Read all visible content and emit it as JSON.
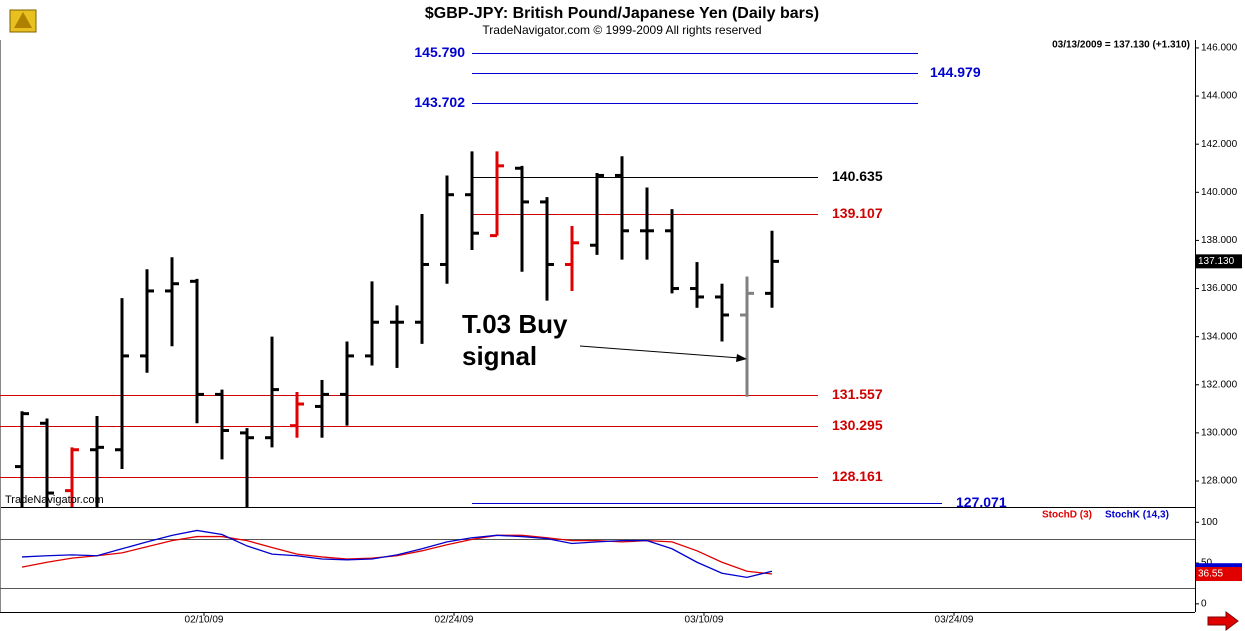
{
  "chart_data": [
    {
      "type": "ohlc",
      "title": "$GBP-JPY:  British Pound/Japanese Yen  (Daily bars)",
      "subtitle": "TradeNavigator.com © 1999-2009 All rights reserved",
      "header": "03/13/2009 = 137.130 (+1.310)",
      "watermark": "TradeNavigator.com",
      "annotation": [
        "T.03 Buy",
        "signal"
      ],
      "open": [
        128.6,
        130.4,
        127.6,
        129.3,
        129.3,
        133.2,
        135.9,
        136.3,
        131.6,
        130.0,
        129.8,
        130.3,
        131.1,
        131.6,
        133.2,
        134.6,
        134.6,
        137.0,
        139.9,
        138.2,
        141.0,
        139.6,
        137.0,
        137.8,
        140.7,
        138.4,
        138.4,
        136.0,
        135.65,
        134.9,
        135.8
      ],
      "high": [
        130.9,
        130.6,
        129.4,
        130.7,
        135.6,
        136.8,
        137.3,
        136.4,
        131.8,
        130.2,
        134.0,
        131.7,
        132.2,
        133.8,
        136.3,
        135.3,
        139.1,
        140.7,
        141.7,
        141.7,
        141.1,
        139.8,
        138.6,
        140.8,
        141.5,
        140.2,
        139.3,
        137.1,
        136.2,
        136.5,
        138.4
      ],
      "low": [
        126.5,
        126.5,
        126.5,
        126.5,
        128.5,
        132.5,
        133.6,
        130.4,
        128.9,
        126.5,
        129.4,
        129.8,
        129.8,
        130.3,
        132.8,
        132.7,
        133.7,
        136.2,
        137.6,
        138.2,
        136.7,
        135.5,
        135.9,
        137.4,
        137.2,
        137.2,
        135.8,
        135.2,
        133.8,
        131.5,
        135.2
      ],
      "close": [
        130.8,
        127.5,
        129.3,
        129.4,
        133.2,
        135.9,
        136.2,
        131.6,
        130.1,
        129.8,
        131.8,
        131.2,
        131.6,
        133.2,
        134.6,
        134.6,
        137.0,
        139.9,
        138.3,
        141.1,
        139.6,
        137.0,
        137.9,
        140.7,
        138.4,
        138.4,
        136.0,
        135.65,
        134.9,
        135.8,
        137.13
      ],
      "colors": [
        "#000",
        "#000",
        "#e00000",
        "#000",
        "#000",
        "#000",
        "#000",
        "#000",
        "#000",
        "#000",
        "#000",
        "#e00000",
        "#000",
        "#000",
        "#000",
        "#000",
        "#000",
        "#000",
        "#000",
        "#e00000",
        "#000",
        "#000",
        "#e00000",
        "#000",
        "#000",
        "#000",
        "#000",
        "#000",
        "#000",
        "#808080",
        "#000"
      ],
      "last_label": {
        "value": 137.13,
        "label": "137.130"
      },
      "levels": [
        {
          "value": 145.79,
          "label": "145.790",
          "color": "#0000d0"
        },
        {
          "value": 144.979,
          "label": "144.979",
          "color": "#0000d0"
        },
        {
          "value": 143.702,
          "label": "143.702",
          "color": "#0000d0"
        },
        {
          "value": 140.635,
          "label": "140.635",
          "color": "#000000"
        },
        {
          "value": 139.107,
          "label": "139.107",
          "color": "#d00000"
        },
        {
          "value": 131.557,
          "label": "131.557",
          "color": "#d00000"
        },
        {
          "value": 130.295,
          "label": "130.295",
          "color": "#d00000"
        },
        {
          "value": 128.161,
          "label": "128.161",
          "color": "#d00000"
        },
        {
          "value": 127.071,
          "label": "127.071",
          "color": "#0000d0"
        }
      ],
      "ylim": [
        126.92,
        146.33
      ],
      "yticks": [
        {
          "value": 146,
          "label": "146.000"
        },
        {
          "value": 144,
          "label": "144.000"
        },
        {
          "value": 142,
          "label": "142.000"
        },
        {
          "value": 140,
          "label": "140.000"
        },
        {
          "value": 138,
          "label": "138.000"
        },
        {
          "value": 136,
          "label": "136.000"
        },
        {
          "value": 134,
          "label": "134.000"
        },
        {
          "value": 132,
          "label": "132.000"
        },
        {
          "value": 130,
          "label": "130.000"
        },
        {
          "value": 128,
          "label": "128.000"
        }
      ],
      "xlim": [
        -0.88,
        46.92
      ],
      "xticks": [
        {
          "value": 7,
          "label": "02/10/09"
        },
        {
          "value": 17,
          "label": "02/24/09"
        },
        {
          "value": 27,
          "label": "03/10/09"
        },
        {
          "value": 37,
          "label": "03/24/09"
        }
      ]
    },
    {
      "type": "line",
      "series": [
        {
          "name": "StochD (3)",
          "color": "#e00000",
          "values": [
            45,
            51,
            56,
            59,
            62.5,
            70,
            77.5,
            82.5,
            82.5,
            77.5,
            69,
            61,
            57.5,
            55,
            56,
            59,
            65,
            72.5,
            79,
            84,
            84,
            81,
            77.5,
            77.5,
            76,
            77.5,
            76,
            65,
            51,
            40,
            36.55
          ]
        },
        {
          "name": "StochK (14,3)",
          "color": "#0000d0",
          "values": [
            57.5,
            59,
            60,
            59,
            67.5,
            76,
            84,
            90,
            85,
            71,
            61,
            59,
            55,
            54,
            55,
            60,
            67.5,
            76,
            81,
            84,
            82.5,
            80,
            74,
            76,
            77.5,
            77.5,
            67.5,
            51,
            37.5,
            32.5,
            40
          ]
        }
      ],
      "levels": [
        80,
        20
      ],
      "ylim": [
        -10,
        117.5
      ],
      "yticks": [
        100,
        50,
        0
      ]
    }
  ]
}
